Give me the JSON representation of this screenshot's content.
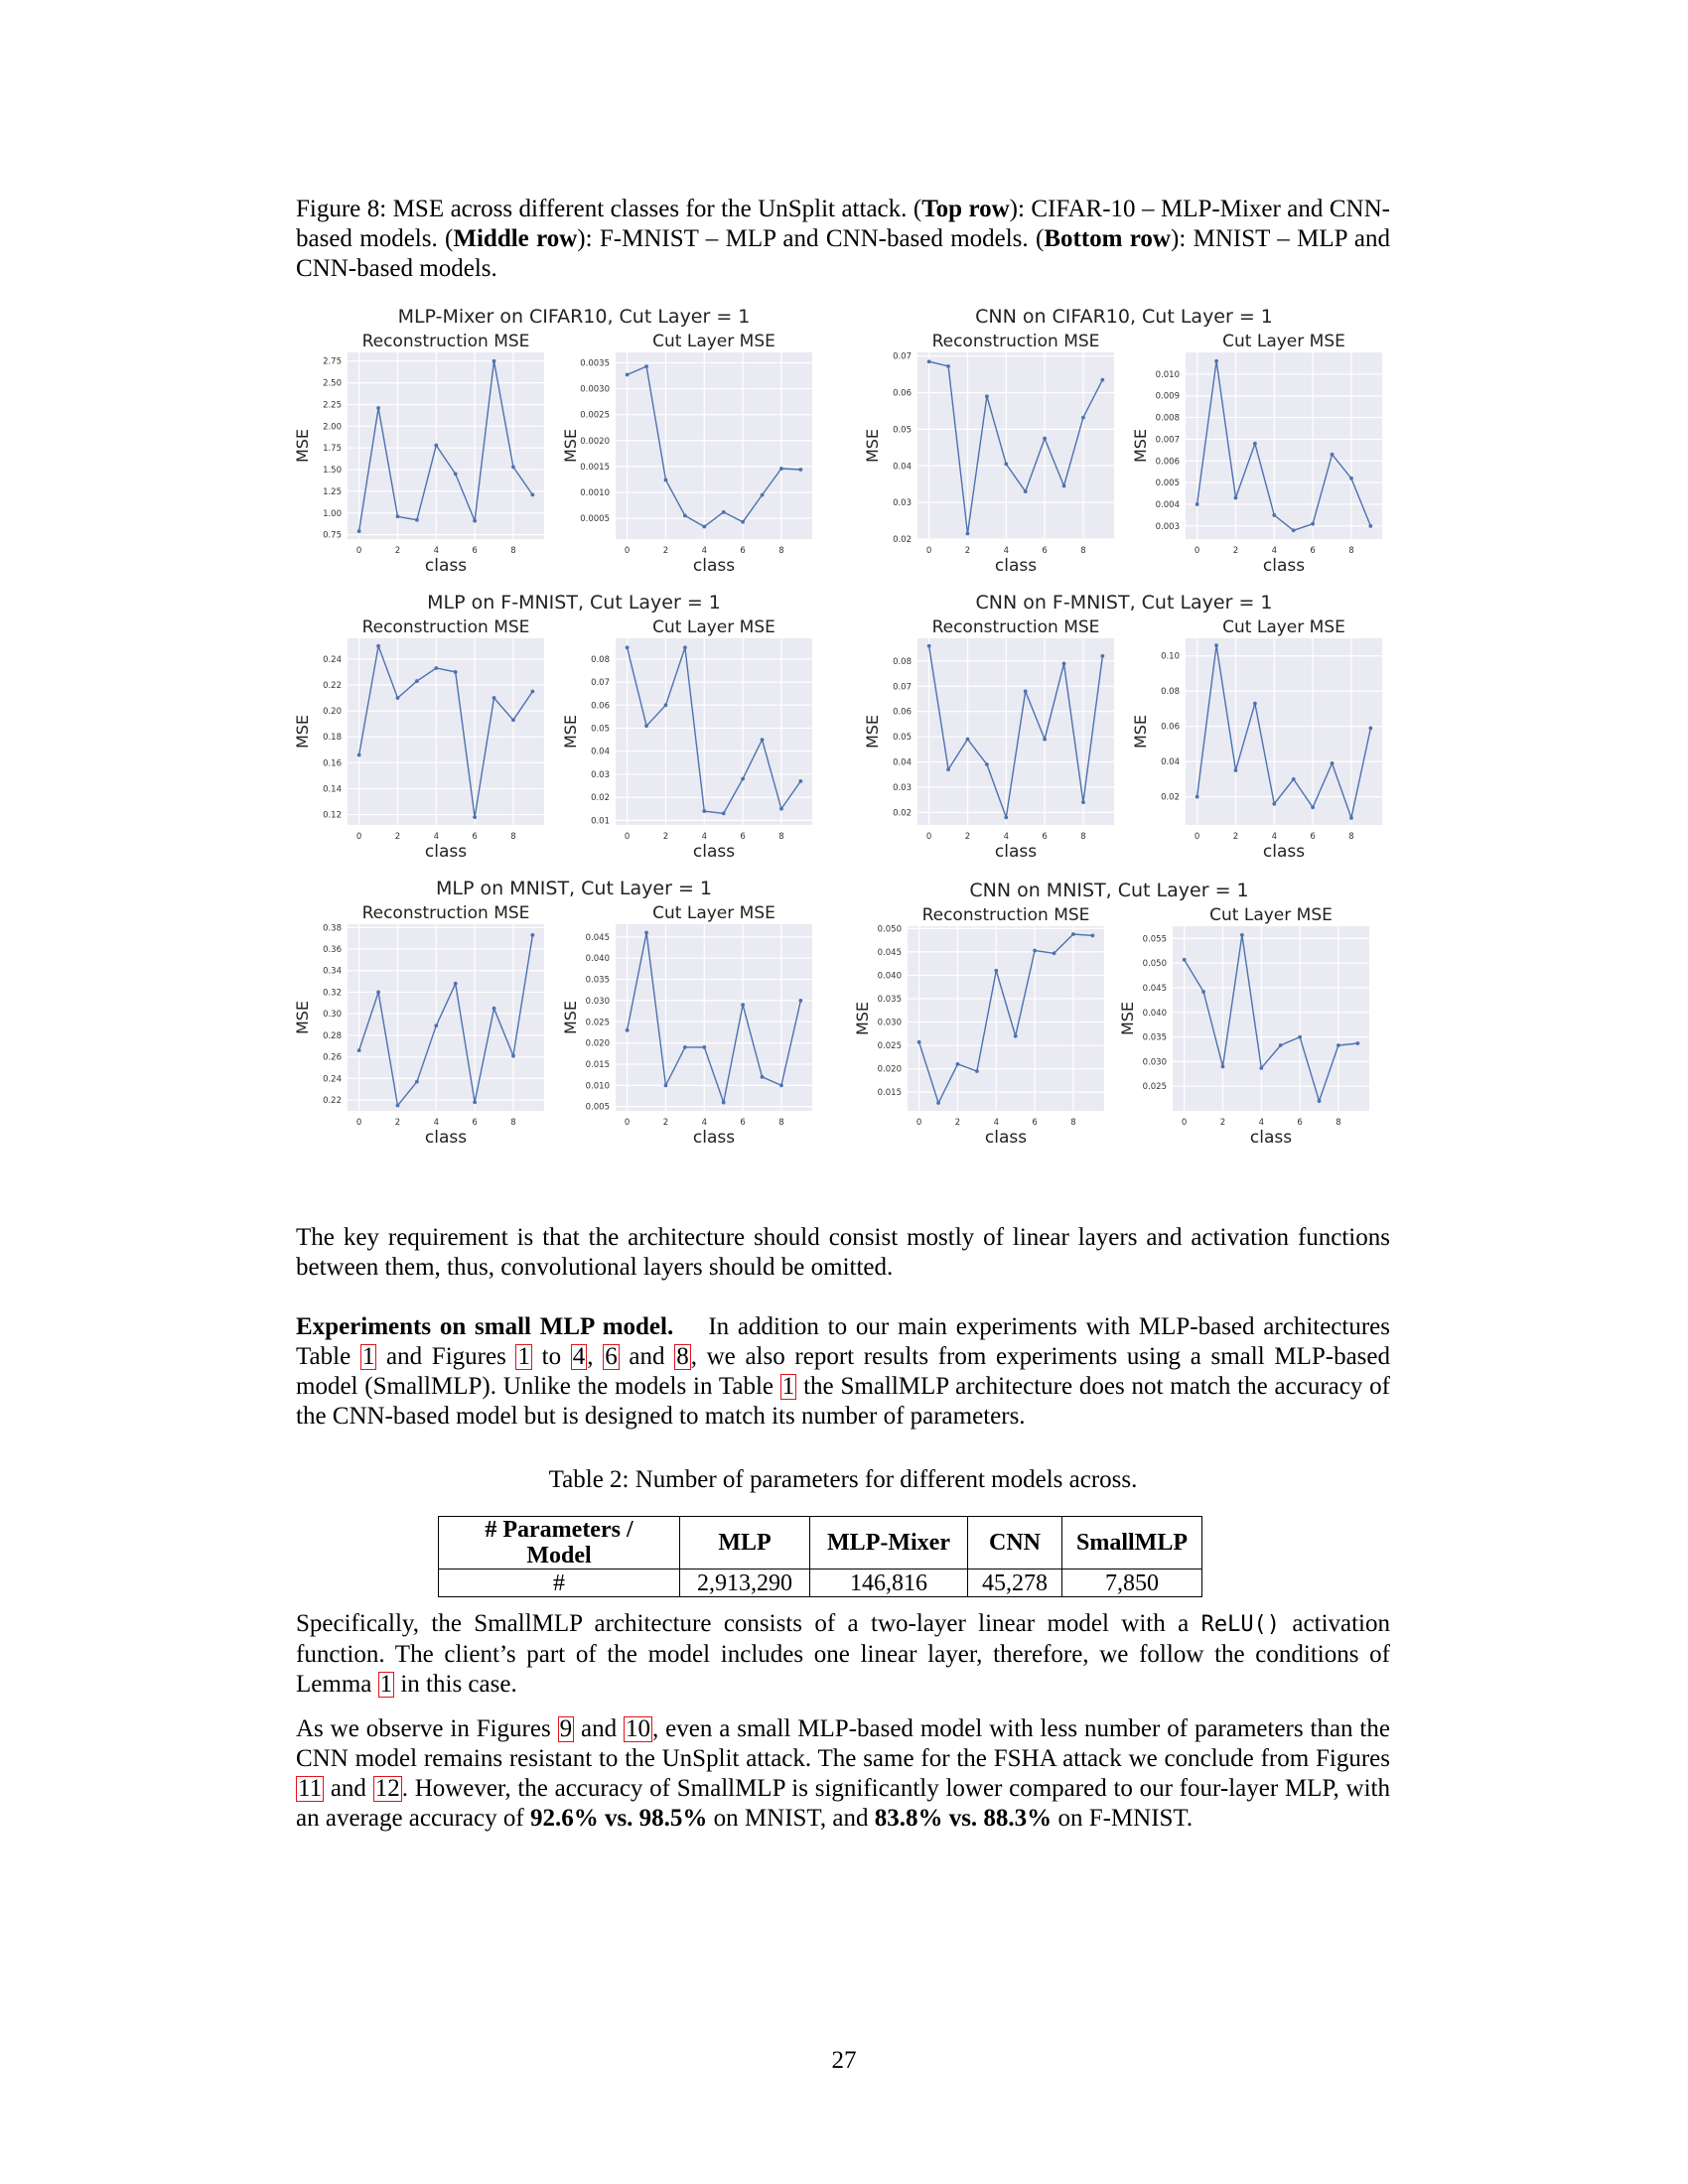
{
  "caption": {
    "label": "Figure 8: MSE across different classes for the UnSplit attack. (",
    "top_row": "Top row",
    "top_text": "): CIFAR-10 – MLP-Mixer and CNN-based models. (",
    "middle_row": "Middle row",
    "middle_text": "): F-MNIST – MLP and CNN-based models. (",
    "bottom_row": "Bottom row",
    "bottom_text": "): MNIST – MLP and CNN-based models."
  },
  "chart_data": [
    {
      "type": "line",
      "title": "MLP-Mixer on CIFAR10, Cut Layer = 1",
      "subtitle": "Reconstruction MSE",
      "xlabel": "class",
      "ylabel": "MSE",
      "x": [
        0,
        1,
        2,
        3,
        4,
        5,
        6,
        7,
        8,
        9
      ],
      "values": [
        0.79,
        2.21,
        0.96,
        0.92,
        1.78,
        1.45,
        0.91,
        2.75,
        1.53,
        1.21
      ],
      "ylim": [
        0.7,
        2.85
      ],
      "yticks": [
        0.75,
        1.0,
        1.25,
        1.5,
        1.75,
        2.0,
        2.25,
        2.5,
        2.75
      ],
      "ytick_labels": [
        "0.75",
        "1.00",
        "1.25",
        "1.50",
        "1.75",
        "2.00",
        "2.25",
        "2.50",
        "2.75"
      ],
      "xticks": [
        0,
        2,
        4,
        6,
        8
      ],
      "grid": true
    },
    {
      "type": "line",
      "title": "",
      "subtitle": "Cut Layer MSE",
      "xlabel": "class",
      "ylabel": "MSE",
      "x": [
        0,
        1,
        2,
        3,
        4,
        5,
        6,
        7,
        8,
        9
      ],
      "values": [
        0.00327,
        0.00343,
        0.00124,
        0.00055,
        0.00034,
        0.00062,
        0.00043,
        0.00095,
        0.00146,
        0.00144
      ],
      "ylim": [
        0.0001,
        0.0037
      ],
      "yticks": [
        0.0005,
        0.001,
        0.0015,
        0.002,
        0.0025,
        0.003,
        0.0035
      ],
      "ytick_labels": [
        "0.0005",
        "0.0010",
        "0.0015",
        "0.0020",
        "0.0025",
        "0.0030",
        "0.0035"
      ],
      "xticks": [
        0,
        2,
        4,
        6,
        8
      ],
      "grid": true
    },
    {
      "type": "line",
      "title": "CNN on CIFAR10, Cut Layer = 1",
      "subtitle": "Reconstruction MSE",
      "xlabel": "class",
      "ylabel": "MSE",
      "x": [
        0,
        1,
        2,
        3,
        4,
        5,
        6,
        7,
        8,
        9
      ],
      "values": [
        0.0685,
        0.0672,
        0.0215,
        0.059,
        0.0405,
        0.033,
        0.0475,
        0.0345,
        0.0532,
        0.0635
      ],
      "ylim": [
        0.02,
        0.071
      ],
      "yticks": [
        0.02,
        0.03,
        0.04,
        0.05,
        0.06,
        0.07
      ],
      "ytick_labels": [
        "0.02",
        "0.03",
        "0.04",
        "0.05",
        "0.06",
        "0.07"
      ],
      "xticks": [
        0,
        2,
        4,
        6,
        8
      ],
      "grid": true
    },
    {
      "type": "line",
      "title": "",
      "subtitle": "Cut Layer MSE",
      "xlabel": "class",
      "ylabel": "MSE",
      "x": [
        0,
        1,
        2,
        3,
        4,
        5,
        6,
        7,
        8,
        9
      ],
      "values": [
        0.004,
        0.0106,
        0.0043,
        0.0068,
        0.0035,
        0.0028,
        0.0031,
        0.0063,
        0.0052,
        0.003
      ],
      "ylim": [
        0.0024,
        0.011
      ],
      "yticks": [
        0.003,
        0.004,
        0.005,
        0.006,
        0.007,
        0.008,
        0.009,
        0.01
      ],
      "ytick_labels": [
        "0.003",
        "0.004",
        "0.005",
        "0.006",
        "0.007",
        "0.008",
        "0.009",
        "0.010"
      ],
      "xticks": [
        0,
        2,
        4,
        6,
        8
      ],
      "grid": true
    },
    {
      "type": "line",
      "title": "MLP on F-MNIST, Cut Layer = 1",
      "subtitle": "Reconstruction MSE",
      "xlabel": "class",
      "ylabel": "MSE",
      "x": [
        0,
        1,
        2,
        3,
        4,
        5,
        6,
        7,
        8,
        9
      ],
      "values": [
        0.166,
        0.25,
        0.21,
        0.223,
        0.233,
        0.23,
        0.118,
        0.21,
        0.193,
        0.215
      ],
      "ylim": [
        0.112,
        0.256
      ],
      "yticks": [
        0.12,
        0.14,
        0.16,
        0.18,
        0.2,
        0.22,
        0.24
      ],
      "ytick_labels": [
        "0.12",
        "0.14",
        "0.16",
        "0.18",
        "0.20",
        "0.22",
        "0.24"
      ],
      "xticks": [
        0,
        2,
        4,
        6,
        8
      ],
      "grid": true
    },
    {
      "type": "line",
      "title": "",
      "subtitle": "Cut Layer MSE",
      "xlabel": "class",
      "ylabel": "MSE",
      "x": [
        0,
        1,
        2,
        3,
        4,
        5,
        6,
        7,
        8,
        9
      ],
      "values": [
        0.085,
        0.051,
        0.06,
        0.085,
        0.014,
        0.013,
        0.028,
        0.045,
        0.015,
        0.027
      ],
      "ylim": [
        0.008,
        0.089
      ],
      "yticks": [
        0.01,
        0.02,
        0.03,
        0.04,
        0.05,
        0.06,
        0.07,
        0.08
      ],
      "ytick_labels": [
        "0.01",
        "0.02",
        "0.03",
        "0.04",
        "0.05",
        "0.06",
        "0.07",
        "0.08"
      ],
      "xticks": [
        0,
        2,
        4,
        6,
        8
      ],
      "grid": true
    },
    {
      "type": "line",
      "title": "CNN on F-MNIST, Cut Layer = 1",
      "subtitle": "Reconstruction MSE",
      "xlabel": "class",
      "ylabel": "MSE",
      "x": [
        0,
        1,
        2,
        3,
        4,
        5,
        6,
        7,
        8,
        9
      ],
      "values": [
        0.086,
        0.037,
        0.049,
        0.039,
        0.018,
        0.068,
        0.049,
        0.079,
        0.024,
        0.082
      ],
      "ylim": [
        0.015,
        0.089
      ],
      "yticks": [
        0.02,
        0.03,
        0.04,
        0.05,
        0.06,
        0.07,
        0.08
      ],
      "ytick_labels": [
        "0.02",
        "0.03",
        "0.04",
        "0.05",
        "0.06",
        "0.07",
        "0.08"
      ],
      "xticks": [
        0,
        2,
        4,
        6,
        8
      ],
      "grid": true
    },
    {
      "type": "line",
      "title": "",
      "subtitle": "Cut Layer MSE",
      "xlabel": "class",
      "ylabel": "MSE",
      "x": [
        0,
        1,
        2,
        3,
        4,
        5,
        6,
        7,
        8,
        9
      ],
      "values": [
        0.02,
        0.106,
        0.035,
        0.073,
        0.016,
        0.03,
        0.014,
        0.039,
        0.008,
        0.059
      ],
      "ylim": [
        0.004,
        0.11
      ],
      "yticks": [
        0.02,
        0.04,
        0.06,
        0.08,
        0.1
      ],
      "ytick_labels": [
        "0.02",
        "0.04",
        "0.06",
        "0.08",
        "0.10"
      ],
      "xticks": [
        0,
        2,
        4,
        6,
        8
      ],
      "grid": true
    },
    {
      "type": "line",
      "title": "MLP on MNIST, Cut Layer = 1",
      "subtitle": "Reconstruction MSE",
      "xlabel": "class",
      "ylabel": "MSE",
      "x": [
        0,
        1,
        2,
        3,
        4,
        5,
        6,
        7,
        8,
        9
      ],
      "values": [
        0.266,
        0.32,
        0.215,
        0.237,
        0.289,
        0.328,
        0.218,
        0.305,
        0.261,
        0.373
      ],
      "ylim": [
        0.21,
        0.383
      ],
      "yticks": [
        0.22,
        0.24,
        0.26,
        0.28,
        0.3,
        0.32,
        0.34,
        0.36,
        0.38
      ],
      "ytick_labels": [
        "0.22",
        "0.24",
        "0.26",
        "0.28",
        "0.30",
        "0.32",
        "0.34",
        "0.36",
        "0.38"
      ],
      "xticks": [
        0,
        2,
        4,
        6,
        8
      ],
      "grid": true
    },
    {
      "type": "line",
      "title": "",
      "subtitle": "Cut Layer MSE",
      "xlabel": "class",
      "ylabel": "MSE",
      "x": [
        0,
        1,
        2,
        3,
        4,
        5,
        6,
        7,
        8,
        9
      ],
      "values": [
        0.023,
        0.046,
        0.01,
        0.019,
        0.019,
        0.006,
        0.029,
        0.012,
        0.01,
        0.03
      ],
      "ylim": [
        0.004,
        0.048
      ],
      "yticks": [
        0.005,
        0.01,
        0.015,
        0.02,
        0.025,
        0.03,
        0.035,
        0.04,
        0.045
      ],
      "ytick_labels": [
        "0.005",
        "0.010",
        "0.015",
        "0.020",
        "0.025",
        "0.030",
        "0.035",
        "0.040",
        "0.045"
      ],
      "xticks": [
        0,
        2,
        4,
        6,
        8
      ],
      "grid": true
    },
    {
      "type": "line",
      "title": "CNN on MNIST, Cut Layer = 1",
      "subtitle": "Reconstruction MSE",
      "xlabel": "class",
      "ylabel": "MSE",
      "x": [
        0,
        1,
        2,
        3,
        4,
        5,
        6,
        7,
        8,
        9
      ],
      "values": [
        0.0257,
        0.0127,
        0.021,
        0.0195,
        0.041,
        0.027,
        0.0453,
        0.0447,
        0.0488,
        0.0485
      ],
      "ylim": [
        0.011,
        0.0505
      ],
      "yticks": [
        0.015,
        0.02,
        0.025,
        0.03,
        0.035,
        0.04,
        0.045,
        0.05
      ],
      "ytick_labels": [
        "0.015",
        "0.020",
        "0.025",
        "0.030",
        "0.035",
        "0.040",
        "0.045",
        "0.050"
      ],
      "xticks": [
        0,
        2,
        4,
        6,
        8
      ],
      "grid": true
    },
    {
      "type": "line",
      "title": "",
      "subtitle": "Cut Layer MSE",
      "xlabel": "class",
      "ylabel": "MSE",
      "x": [
        0,
        1,
        2,
        3,
        4,
        5,
        6,
        7,
        8,
        9
      ],
      "values": [
        0.0507,
        0.0442,
        0.029,
        0.0557,
        0.0287,
        0.0333,
        0.035,
        0.022,
        0.0333,
        0.0337
      ],
      "ylim": [
        0.02,
        0.0575
      ],
      "yticks": [
        0.025,
        0.03,
        0.035,
        0.04,
        0.045,
        0.05,
        0.055
      ],
      "ytick_labels": [
        "0.025",
        "0.030",
        "0.035",
        "0.040",
        "0.045",
        "0.050",
        "0.055"
      ],
      "xticks": [
        0,
        2,
        4,
        6,
        8
      ],
      "grid": true
    }
  ],
  "chart_colors": {
    "line": "#4c72b0",
    "background": "#eaeaf2",
    "grid": "#ffffff"
  },
  "para1": "The key requirement is that the architecture should consist mostly of linear layers and activation functions between them, thus, convolutional layers should be omitted.",
  "para2": {
    "heading": "Experiments on small MLP model.",
    "t1": "In addition to our main experiments with MLP-based architectures Table ",
    "r1": "1",
    "t2": " and Figures ",
    "r2": "1",
    "t3": " to ",
    "r3": "4",
    "t4": ", ",
    "r4": "6",
    "t5": " and ",
    "r5": "8",
    "t6": ", we also report results from experiments using a small MLP-based model (SmallMLP). Unlike the models in Table ",
    "r6": "1",
    "t7": " the SmallMLP architecture does not match the accuracy of the CNN-based model but is designed to match its number of parameters."
  },
  "table": {
    "caption": "Table 2: Number of parameters for different models across.",
    "headers": [
      "# Parameters / Model",
      "MLP",
      "MLP-Mixer",
      "CNN",
      "SmallMLP"
    ],
    "row": [
      "#",
      "2,913,290",
      "146,816",
      "45,278",
      "7,850"
    ]
  },
  "para3": {
    "t1": "Specifically, the SmallMLP architecture consists of a two-layer linear model with a ",
    "code": "ReLU()",
    "t2": " activation function. The client’s part of the model includes one linear layer, therefore, we follow the conditions of Lemma ",
    "r1": "1",
    "t3": " in this case."
  },
  "para4": {
    "t1": "As we observe in Figures ",
    "r1": "9",
    "t2": " and ",
    "r2": "10",
    "t3": ", even a small MLP-based model with less number of parameters than the CNN model remains resistant to the UnSplit attack. The same for the FSHA attack we conclude from Figures ",
    "r3": "11",
    "t4": " and ",
    "r4": "12",
    "t5": ". However, the accuracy of SmallMLP is significantly lower compared to our four-layer MLP, with an average accuracy of ",
    "b1": "92.6% vs. 98.5%",
    "t6": " on MNIST, and ",
    "b2": "83.8% vs. 88.3%",
    "t7": " on F-MNIST."
  },
  "page_number": "27"
}
